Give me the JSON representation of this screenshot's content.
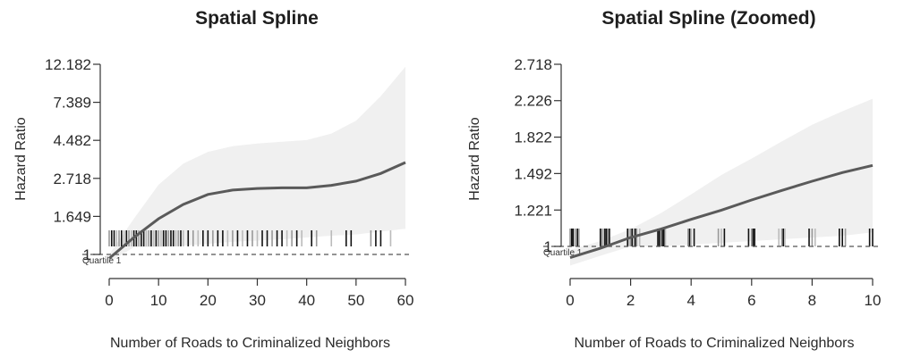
{
  "chart_data": [
    {
      "type": "line",
      "title": "Spatial Spline",
      "xlabel": "Number of Roads to Criminalized Neighbors",
      "ylabel": "Hazard Ratio",
      "y_scale": "log",
      "xlim": [
        0,
        60
      ],
      "ylim": [
        1,
        12.182
      ],
      "x_ticks": [
        0,
        10,
        20,
        30,
        40,
        50,
        60
      ],
      "y_ticks": [
        1,
        1.649,
        2.718,
        4.482,
        7.389,
        12.182
      ],
      "y_tick_labels": [
        "1",
        "1.649",
        "2.718",
        "4.482",
        "7.389",
        "12.182"
      ],
      "reference_line": {
        "y": 1,
        "label": "Quartile 1",
        "style": "dashed"
      },
      "series": [
        {
          "x": [
            0,
            5,
            10,
            15,
            20,
            25,
            30,
            35,
            40,
            45,
            50,
            55,
            60
          ],
          "y": [
            0.95,
            1.25,
            1.6,
            1.93,
            2.2,
            2.33,
            2.38,
            2.4,
            2.4,
            2.48,
            2.62,
            2.9,
            3.35
          ],
          "lower": [
            0.9,
            1.1,
            1.1,
            1.12,
            1.15,
            1.18,
            1.2,
            1.22,
            1.25,
            1.28,
            1.3,
            1.35,
            1.4
          ],
          "upper": [
            1.0,
            1.6,
            2.5,
            3.3,
            3.85,
            4.15,
            4.3,
            4.4,
            4.5,
            4.9,
            5.8,
            8.0,
            11.8
          ]
        }
      ],
      "rug": [
        0,
        0.5,
        1,
        1.5,
        2,
        2.5,
        3,
        3.5,
        4,
        4.5,
        5,
        5.5,
        6,
        6.5,
        7,
        7.5,
        8,
        8.5,
        9,
        9.5,
        10,
        10.5,
        11,
        11.5,
        12,
        12.5,
        13,
        13.5,
        14,
        14.5,
        15,
        16,
        17,
        18,
        19,
        20,
        21,
        22,
        23,
        24,
        25,
        26,
        27,
        28,
        29,
        30,
        31,
        32,
        33,
        34,
        35,
        36,
        37,
        38,
        39,
        41,
        42,
        45,
        48,
        49,
        53,
        54,
        55,
        57
      ],
      "grid": false
    },
    {
      "type": "line",
      "title": "Spatial Spline (Zoomed)",
      "xlabel": "Number of Roads to Criminalized Neighbors",
      "ylabel": "Hazard Ratio",
      "y_scale": "log",
      "xlim": [
        0,
        10
      ],
      "ylim": [
        1,
        2.718
      ],
      "x_ticks": [
        0,
        2,
        4,
        6,
        8,
        10
      ],
      "y_ticks": [
        1,
        1.221,
        1.492,
        1.822,
        2.226,
        2.718
      ],
      "y_tick_labels": [
        "1",
        "1.221",
        "1.492",
        "1.822",
        "2.226",
        "2.718"
      ],
      "reference_line": {
        "y": 1,
        "label": "Quartile 1",
        "style": "dashed"
      },
      "series": [
        {
          "x": [
            0,
            1,
            2,
            3,
            4,
            5,
            6,
            7,
            8,
            9,
            10
          ],
          "y": [
            0.94,
            0.99,
            1.05,
            1.1,
            1.16,
            1.22,
            1.29,
            1.36,
            1.43,
            1.5,
            1.56
          ],
          "lower": [
            0.9,
            0.95,
            1.0,
            1.0,
            1.01,
            1.02,
            1.03,
            1.04,
            1.05,
            1.06,
            1.08
          ],
          "upper": [
            0.98,
            1.03,
            1.1,
            1.2,
            1.33,
            1.48,
            1.62,
            1.78,
            1.95,
            2.1,
            2.25
          ]
        }
      ],
      "rug": [
        0,
        0.05,
        0.1,
        0.15,
        0.2,
        0.25,
        0.3,
        1,
        1.05,
        1.1,
        1.15,
        1.2,
        1.25,
        1.3,
        1.9,
        1.95,
        2,
        2.05,
        2.1,
        2.15,
        2.2,
        2.3,
        2.9,
        2.95,
        3,
        3.05,
        3.1,
        3.15,
        3.9,
        3.95,
        4,
        4.1,
        4.9,
        5,
        5.1,
        5.9,
        6,
        6.05,
        6.1,
        6.9,
        7,
        7.05,
        7.1,
        7.9,
        8,
        8.1,
        8.9,
        9,
        9.1,
        9.9,
        10
      ],
      "grid": false
    }
  ]
}
